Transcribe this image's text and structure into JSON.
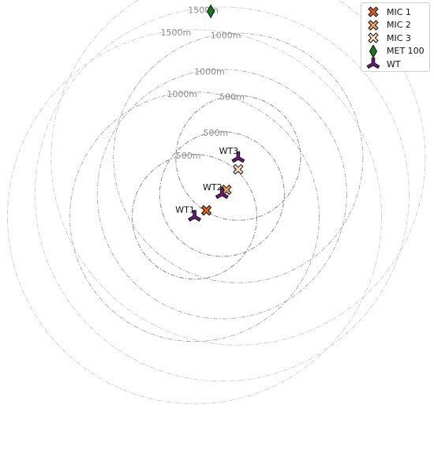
{
  "chart_data": {
    "type": "scatter",
    "title": "",
    "xlabel": "",
    "ylabel": "",
    "grid": false,
    "axes_visible": false,
    "legend_placement": "top-right",
    "series": [
      {
        "name": "MIC 1",
        "marker": "x-filled",
        "color": "#e8611a",
        "points": [
          {
            "x": 375,
            "y": 30
          }
        ]
      },
      {
        "name": "MIC 2",
        "marker": "x-filled",
        "color": "#f5a45f",
        "points": [
          {
            "x": 535,
            "y": 175
          }
        ]
      },
      {
        "name": "MIC 3",
        "marker": "x-filled",
        "color": "#fde0bf",
        "points": [
          {
            "x": 630,
            "y": 320
          }
        ]
      },
      {
        "name": "MET 100",
        "marker": "diamond",
        "color": "#1a7a1a",
        "points": [
          {
            "x": 410,
            "y": 1435
          }
        ]
      },
      {
        "name": "WT",
        "marker": "tri-star",
        "color": "#6a1b7a",
        "points": [
          {
            "x": 280,
            "y": -15,
            "label": "WT1"
          },
          {
            "x": 500,
            "y": 145,
            "label": "WT2"
          },
          {
            "x": 630,
            "y": 400,
            "label": "WT3"
          }
        ]
      }
    ],
    "rings": [
      {
        "center": "WT1",
        "radius_m": 500,
        "label": "500m"
      },
      {
        "center": "WT1",
        "radius_m": 1000,
        "label": "1000m"
      },
      {
        "center": "WT1",
        "radius_m": 1500,
        "label": "1500m"
      },
      {
        "center": "WT2",
        "radius_m": 500,
        "label": "500m"
      },
      {
        "center": "WT2",
        "radius_m": 1000,
        "label": "1000m"
      },
      {
        "center": "WT2",
        "radius_m": 1500,
        "label": "1500m"
      },
      {
        "center": "WT3",
        "radius_m": 500,
        "label": "500m"
      },
      {
        "center": "WT3",
        "radius_m": 1000,
        "label": "1000m"
      },
      {
        "center": "WT3",
        "radius_m": 1500,
        "label": "1500m"
      }
    ],
    "xlim": [
      -1280,
      2200
    ],
    "ylim": [
      -1760,
      1515
    ]
  },
  "legend": {
    "items": [
      {
        "label": "MIC 1",
        "icon": "x-filled-icon",
        "color": "#e8611a"
      },
      {
        "label": "MIC 2",
        "icon": "x-filled-icon",
        "color": "#f5a45f"
      },
      {
        "label": "MIC 3",
        "icon": "x-filled-icon",
        "color": "#fde0bf"
      },
      {
        "label": "MET 100",
        "icon": "diamond-icon",
        "color": "#1a7a1a"
      },
      {
        "label": "WT",
        "icon": "tri-star-icon",
        "color": "#6a1b7a"
      }
    ]
  },
  "colors": {
    "ring_500": "#8c8c8c",
    "ring_1000": "#a8a8a8",
    "ring_1500": "#c6c6c6",
    "marker_edge": "#111111"
  }
}
